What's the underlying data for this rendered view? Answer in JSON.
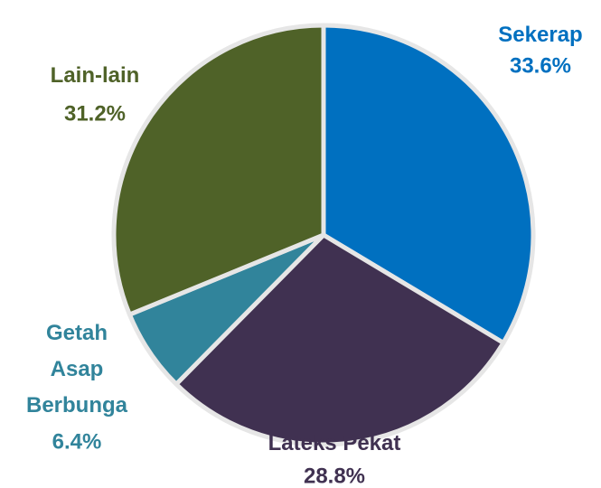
{
  "chart_data": {
    "type": "pie",
    "categories": [
      "Sekerap",
      "Lateks Pekat",
      "Getah Asap Berbunga",
      "Lain-lain"
    ],
    "values": [
      33.6,
      28.8,
      6.4,
      31.2
    ],
    "value_labels": [
      "33.6%",
      "28.8%",
      "6.4%",
      "31.2%"
    ],
    "colors": [
      "#0070c0",
      "#403151",
      "#31849b",
      "#4f6228"
    ]
  }
}
